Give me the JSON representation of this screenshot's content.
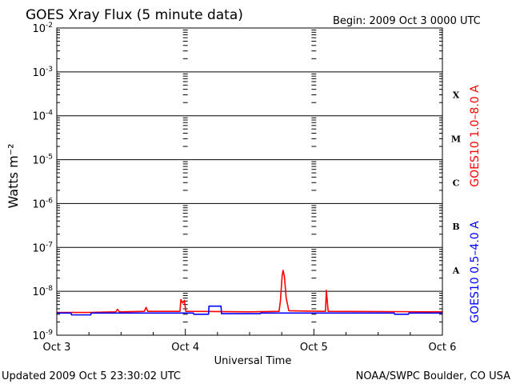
{
  "header": {
    "title": "GOES Xray Flux (5 minute data)",
    "begin": "Begin:  2009 Oct 3 0000 UTC"
  },
  "footer": {
    "updated": "Updated 2009 Oct  5 23:30:02 UTC",
    "credit": "NOAA/SWPC Boulder, CO USA"
  },
  "colors": {
    "long_channel": "#ff0000",
    "short_channel": "#0000ff",
    "axes": "#000000"
  },
  "chart_data": {
    "type": "line",
    "title": "GOES Xray Flux (5 minute data)",
    "xlabel": "Universal Time",
    "ylabel": "Watts m⁻²",
    "yscale": "log",
    "ylim": [
      1e-09,
      0.01
    ],
    "xlim": [
      "2009-10-03T00:00Z",
      "2009-10-06T00:00Z"
    ],
    "grid": "horizontal lines at each decade; dashed verticals at day boundaries",
    "x_tick_labels": [
      "Oct 3",
      "Oct 4",
      "Oct 5",
      "Oct 6"
    ],
    "y_ticks": [
      {
        "mant": "10",
        "exp": "-2",
        "value": 0.01
      },
      {
        "mant": "10",
        "exp": "-3",
        "value": 0.001
      },
      {
        "mant": "10",
        "exp": "-4",
        "value": 0.0001
      },
      {
        "mant": "10",
        "exp": "-5",
        "value": 1e-05
      },
      {
        "mant": "10",
        "exp": "-6",
        "value": 1e-06
      },
      {
        "mant": "10",
        "exp": "-7",
        "value": 1e-07
      },
      {
        "mant": "10",
        "exp": "-8",
        "value": 1e-08
      },
      {
        "mant": "10",
        "exp": "-9",
        "value": 1e-09
      }
    ],
    "flare_classes": [
      {
        "label": "X",
        "value": 0.0003
      },
      {
        "label": "M",
        "value": 3e-05
      },
      {
        "label": "C",
        "value": 3e-06
      },
      {
        "label": "B",
        "value": 3e-07
      },
      {
        "label": "A",
        "value": 3e-08
      }
    ],
    "series": [
      {
        "name": "GOES10 1.0–8.0 A",
        "color": "#ff0000",
        "points": [
          [
            "2009-10-03T00:00Z",
            3.3e-09
          ],
          [
            "2009-10-03T06:00Z",
            3.3e-09
          ],
          [
            "2009-10-03T11:00Z",
            3.4e-09
          ],
          [
            "2009-10-03T11:20Z",
            3.9e-09
          ],
          [
            "2009-10-03T11:40Z",
            3.4e-09
          ],
          [
            "2009-10-03T16:20Z",
            3.5e-09
          ],
          [
            "2009-10-03T16:40Z",
            4.3e-09
          ],
          [
            "2009-10-03T17:00Z",
            3.5e-09
          ],
          [
            "2009-10-03T23:00Z",
            3.5e-09
          ],
          [
            "2009-10-03T23:10Z",
            6.5e-09
          ],
          [
            "2009-10-03T23:30Z",
            5.4e-09
          ],
          [
            "2009-10-03T23:50Z",
            6.2e-09
          ],
          [
            "2009-10-04T00:05Z",
            3.5e-09
          ],
          [
            "2009-10-04T12:00Z",
            3.4e-09
          ],
          [
            "2009-10-04T17:30Z",
            3.5e-09
          ],
          [
            "2009-10-04T17:45Z",
            6e-09
          ],
          [
            "2009-10-04T18:05Z",
            2.3e-08
          ],
          [
            "2009-10-04T18:15Z",
            3e-08
          ],
          [
            "2009-10-04T18:30Z",
            2.2e-08
          ],
          [
            "2009-10-04T18:50Z",
            7e-09
          ],
          [
            "2009-10-04T19:20Z",
            3.6e-09
          ],
          [
            "2009-10-05T02:10Z",
            3.5e-09
          ],
          [
            "2009-10-05T02:20Z",
            1.05e-08
          ],
          [
            "2009-10-05T02:40Z",
            3.5e-09
          ],
          [
            "2009-10-06T00:00Z",
            3.4e-09
          ]
        ]
      },
      {
        "name": "GOES10 0.5–4.0 A",
        "color": "#0000ff",
        "points": [
          [
            "2009-10-03T00:00Z",
            3.2e-09
          ],
          [
            "2009-10-03T02:40Z",
            3.2e-09
          ],
          [
            "2009-10-03T02:45Z",
            2.9e-09
          ],
          [
            "2009-10-03T06:20Z",
            2.9e-09
          ],
          [
            "2009-10-03T06:25Z",
            3.2e-09
          ],
          [
            "2009-10-04T01:30Z",
            3.2e-09
          ],
          [
            "2009-10-04T01:35Z",
            3e-09
          ],
          [
            "2009-10-04T04:20Z",
            3e-09
          ],
          [
            "2009-10-04T04:25Z",
            4.6e-09
          ],
          [
            "2009-10-04T06:40Z",
            4.6e-09
          ],
          [
            "2009-10-04T06:45Z",
            3.1e-09
          ],
          [
            "2009-10-04T14:00Z",
            3.1e-09
          ],
          [
            "2009-10-04T14:05Z",
            3.2e-09
          ],
          [
            "2009-10-05T15:00Z",
            3.2e-09
          ],
          [
            "2009-10-05T15:05Z",
            3e-09
          ],
          [
            "2009-10-05T17:40Z",
            3e-09
          ],
          [
            "2009-10-05T17:45Z",
            3.2e-09
          ],
          [
            "2009-10-06T00:00Z",
            3.2e-09
          ]
        ]
      }
    ]
  }
}
